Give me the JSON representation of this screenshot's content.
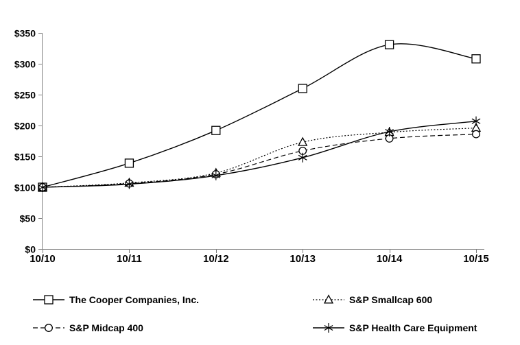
{
  "chart_data": {
    "type": "line",
    "title": "",
    "categories": [
      "10/10",
      "10/11",
      "10/12",
      "10/13",
      "10/14",
      "10/15"
    ],
    "series": [
      {
        "key": "cooper",
        "name": "The Cooper Companies, Inc.",
        "marker": "square",
        "line": "solid",
        "values": [
          100,
          139,
          192,
          260,
          331,
          308
        ]
      },
      {
        "key": "sp-smallcap-600",
        "name": "S&P Smallcap 600",
        "marker": "triangle",
        "line": "dotted",
        "values": [
          100,
          107,
          123,
          173,
          189,
          196
        ]
      },
      {
        "key": "sp-midcap-400",
        "name": "S&P Midcap 400",
        "marker": "circle",
        "line": "dashed",
        "values": [
          100,
          106,
          121,
          159,
          179,
          186
        ]
      },
      {
        "key": "sp-health-care-equipment",
        "name": "S&P Health Care Equipment",
        "marker": "asterisk",
        "line": "solid",
        "values": [
          100,
          105,
          119,
          148,
          190,
          207
        ]
      }
    ],
    "xlabel": "",
    "ylabel": "",
    "ylim": [
      0,
      350
    ],
    "y_step": 50,
    "y_tick_labels": [
      "$0",
      "$50",
      "$100",
      "$150",
      "$200",
      "$250",
      "$300",
      "$350"
    ],
    "x_tick_labels": [
      "10/10",
      "10/11",
      "10/12",
      "10/13",
      "10/14",
      "10/15"
    ],
    "grid": "off",
    "legend_position": "bottom-two-columns",
    "legend_order": [
      "cooper",
      "sp-smallcap-600",
      "sp-midcap-400",
      "sp-health-care-equipment"
    ]
  },
  "colors": {
    "series": "#000000",
    "axis": "#808080",
    "text": "#000000",
    "background": "#ffffff",
    "marker_fill": "#ffffff"
  }
}
